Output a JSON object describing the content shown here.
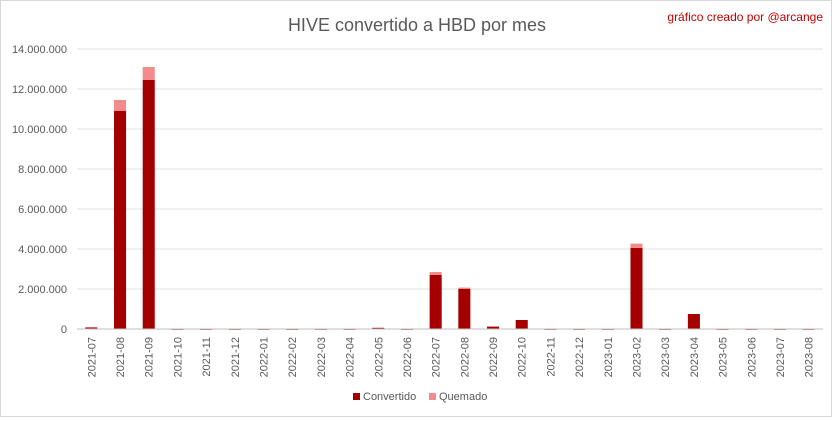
{
  "chart_data": {
    "type": "bar",
    "stacked": true,
    "title": "HIVE convertido a HBD por mes",
    "credit": "gráfico creado por @arcange",
    "ylim": [
      0,
      14000000
    ],
    "yticks": [
      "0",
      "2.000.000",
      "4.000.000",
      "6.000.000",
      "8.000.000",
      "10.000.000",
      "12.000.000",
      "14.000.000"
    ],
    "ytick_values": [
      0,
      2000000,
      4000000,
      6000000,
      8000000,
      10000000,
      12000000,
      14000000
    ],
    "grid": true,
    "legend_position": "bottom",
    "categories": [
      "2021-07",
      "2021-08",
      "2021-09",
      "2021-10",
      "2021-11",
      "2021-12",
      "2022-01",
      "2022-02",
      "2022-03",
      "2022-04",
      "2022-05",
      "2022-06",
      "2022-07",
      "2022-08",
      "2022-09",
      "2022-10",
      "2022-11",
      "2022-12",
      "2023-01",
      "2023-02",
      "2023-03",
      "2023-04",
      "2023-05",
      "2023-06",
      "2023-07",
      "2023-08"
    ],
    "series": [
      {
        "name": "Convertido",
        "color": "#a50000",
        "values": [
          80000,
          10900000,
          12450000,
          10000,
          10000,
          10000,
          10000,
          10000,
          10000,
          10000,
          60000,
          10000,
          2700000,
          2000000,
          120000,
          450000,
          10000,
          10000,
          10000,
          4050000,
          10000,
          750000,
          10000,
          10000,
          10000,
          10000
        ]
      },
      {
        "name": "Quemado",
        "color": "#f28b8b",
        "values": [
          0,
          550000,
          650000,
          0,
          0,
          0,
          0,
          0,
          0,
          0,
          0,
          0,
          150000,
          70000,
          0,
          0,
          0,
          0,
          0,
          220000,
          0,
          0,
          0,
          0,
          0,
          0
        ]
      }
    ]
  }
}
